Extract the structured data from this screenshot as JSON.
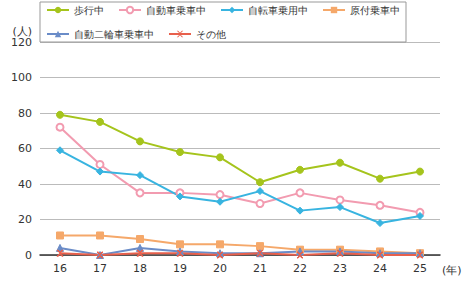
{
  "chart_data": {
    "type": "line",
    "x_label": "(年)",
    "y_label": "(人)",
    "categories": [
      "16",
      "17",
      "18",
      "19",
      "20",
      "21",
      "22",
      "23",
      "24",
      "25"
    ],
    "series": [
      {
        "name": "歩行中",
        "color": "#a5c41c",
        "marker": "circle",
        "values": [
          79,
          75,
          64,
          58,
          55,
          41,
          48,
          52,
          43,
          47
        ]
      },
      {
        "name": "自動車乗車中",
        "color": "#f29bb0",
        "marker": "emptyCircle",
        "values": [
          72,
          51,
          35,
          35,
          34,
          29,
          35,
          31,
          28,
          24
        ]
      },
      {
        "name": "自転車乗用中",
        "color": "#38b4e0",
        "marker": "diamond",
        "values": [
          59,
          47,
          45,
          33,
          30,
          36,
          25,
          27,
          18,
          22
        ]
      },
      {
        "name": "原付乗車中",
        "color": "#f5a86a",
        "marker": "square",
        "values": [
          11,
          11,
          9,
          6,
          6,
          5,
          3,
          3,
          2,
          1
        ]
      },
      {
        "name": "自動二輪車乗車中",
        "color": "#6a8cc8",
        "marker": "triangle",
        "values": [
          4,
          0,
          4,
          2,
          1,
          1,
          2,
          2,
          1,
          1
        ]
      },
      {
        "name": "その他",
        "color": "#e8604c",
        "marker": "x",
        "values": [
          1,
          0,
          1,
          1,
          0,
          1,
          0,
          1,
          0,
          0
        ]
      }
    ],
    "ylim": [
      0,
      120
    ],
    "yticks": [
      0,
      20,
      40,
      60,
      80,
      100,
      120
    ],
    "grid": true,
    "legend": "top"
  }
}
